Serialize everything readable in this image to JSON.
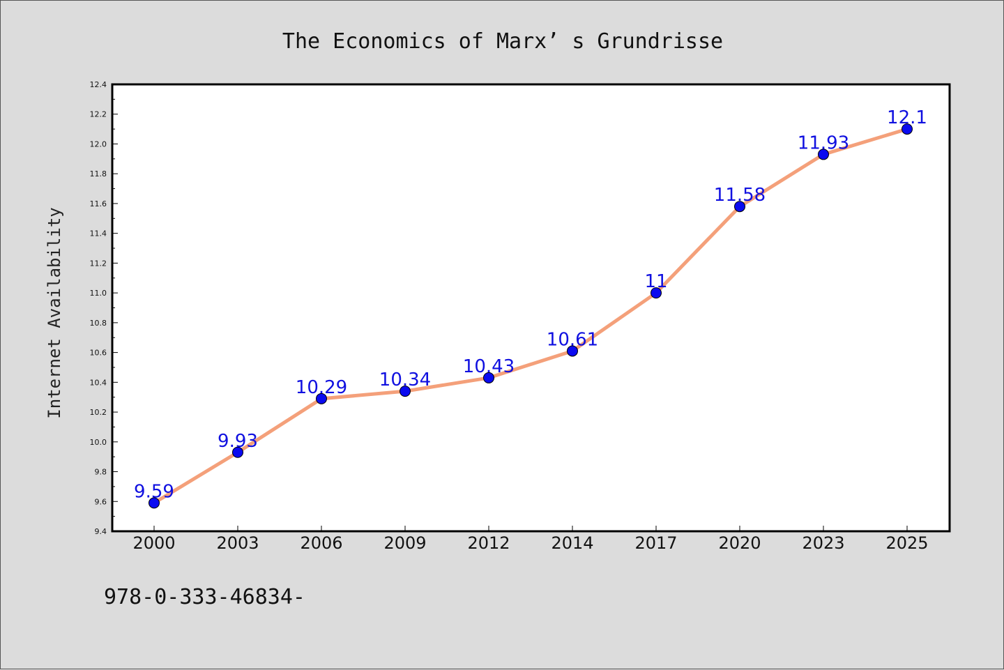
{
  "chart_data": {
    "type": "line",
    "title": "The Economics of Marx’ s Grundrisse",
    "xlabel": "",
    "ylabel": "Internet Availability",
    "categories": [
      "2000",
      "2003",
      "2006",
      "2009",
      "2012",
      "2014",
      "2017",
      "2020",
      "2023",
      "2025"
    ],
    "series": [
      {
        "values": [
          9.59,
          9.93,
          10.29,
          10.34,
          10.43,
          10.61,
          11.0,
          11.58,
          11.93,
          12.1
        ],
        "data_labels": [
          "9.59",
          "9.93",
          "10.29",
          "10.34",
          "10.43",
          "10.61",
          "11",
          "11.58",
          "11.93",
          "12.1"
        ],
        "line_color": "#f4a07a",
        "marker_color": "#0a0af0",
        "label_color": "#1010e0"
      }
    ],
    "ylim": [
      9.4,
      12.4
    ],
    "yticks": [
      "9.4",
      "9.6",
      "9.8",
      "10.0",
      "10.2",
      "10.4",
      "10.6",
      "10.8",
      "11.0",
      "11.2",
      "11.4",
      "11.6",
      "11.8",
      "12.0",
      "12.2",
      "12.4"
    ],
    "grid": false,
    "legend": "none"
  },
  "footer_text": "978-0-333-46834-",
  "colors": {
    "background": "#dcdcdc",
    "plot_background": "#ffffff",
    "axis": "#000000"
  }
}
